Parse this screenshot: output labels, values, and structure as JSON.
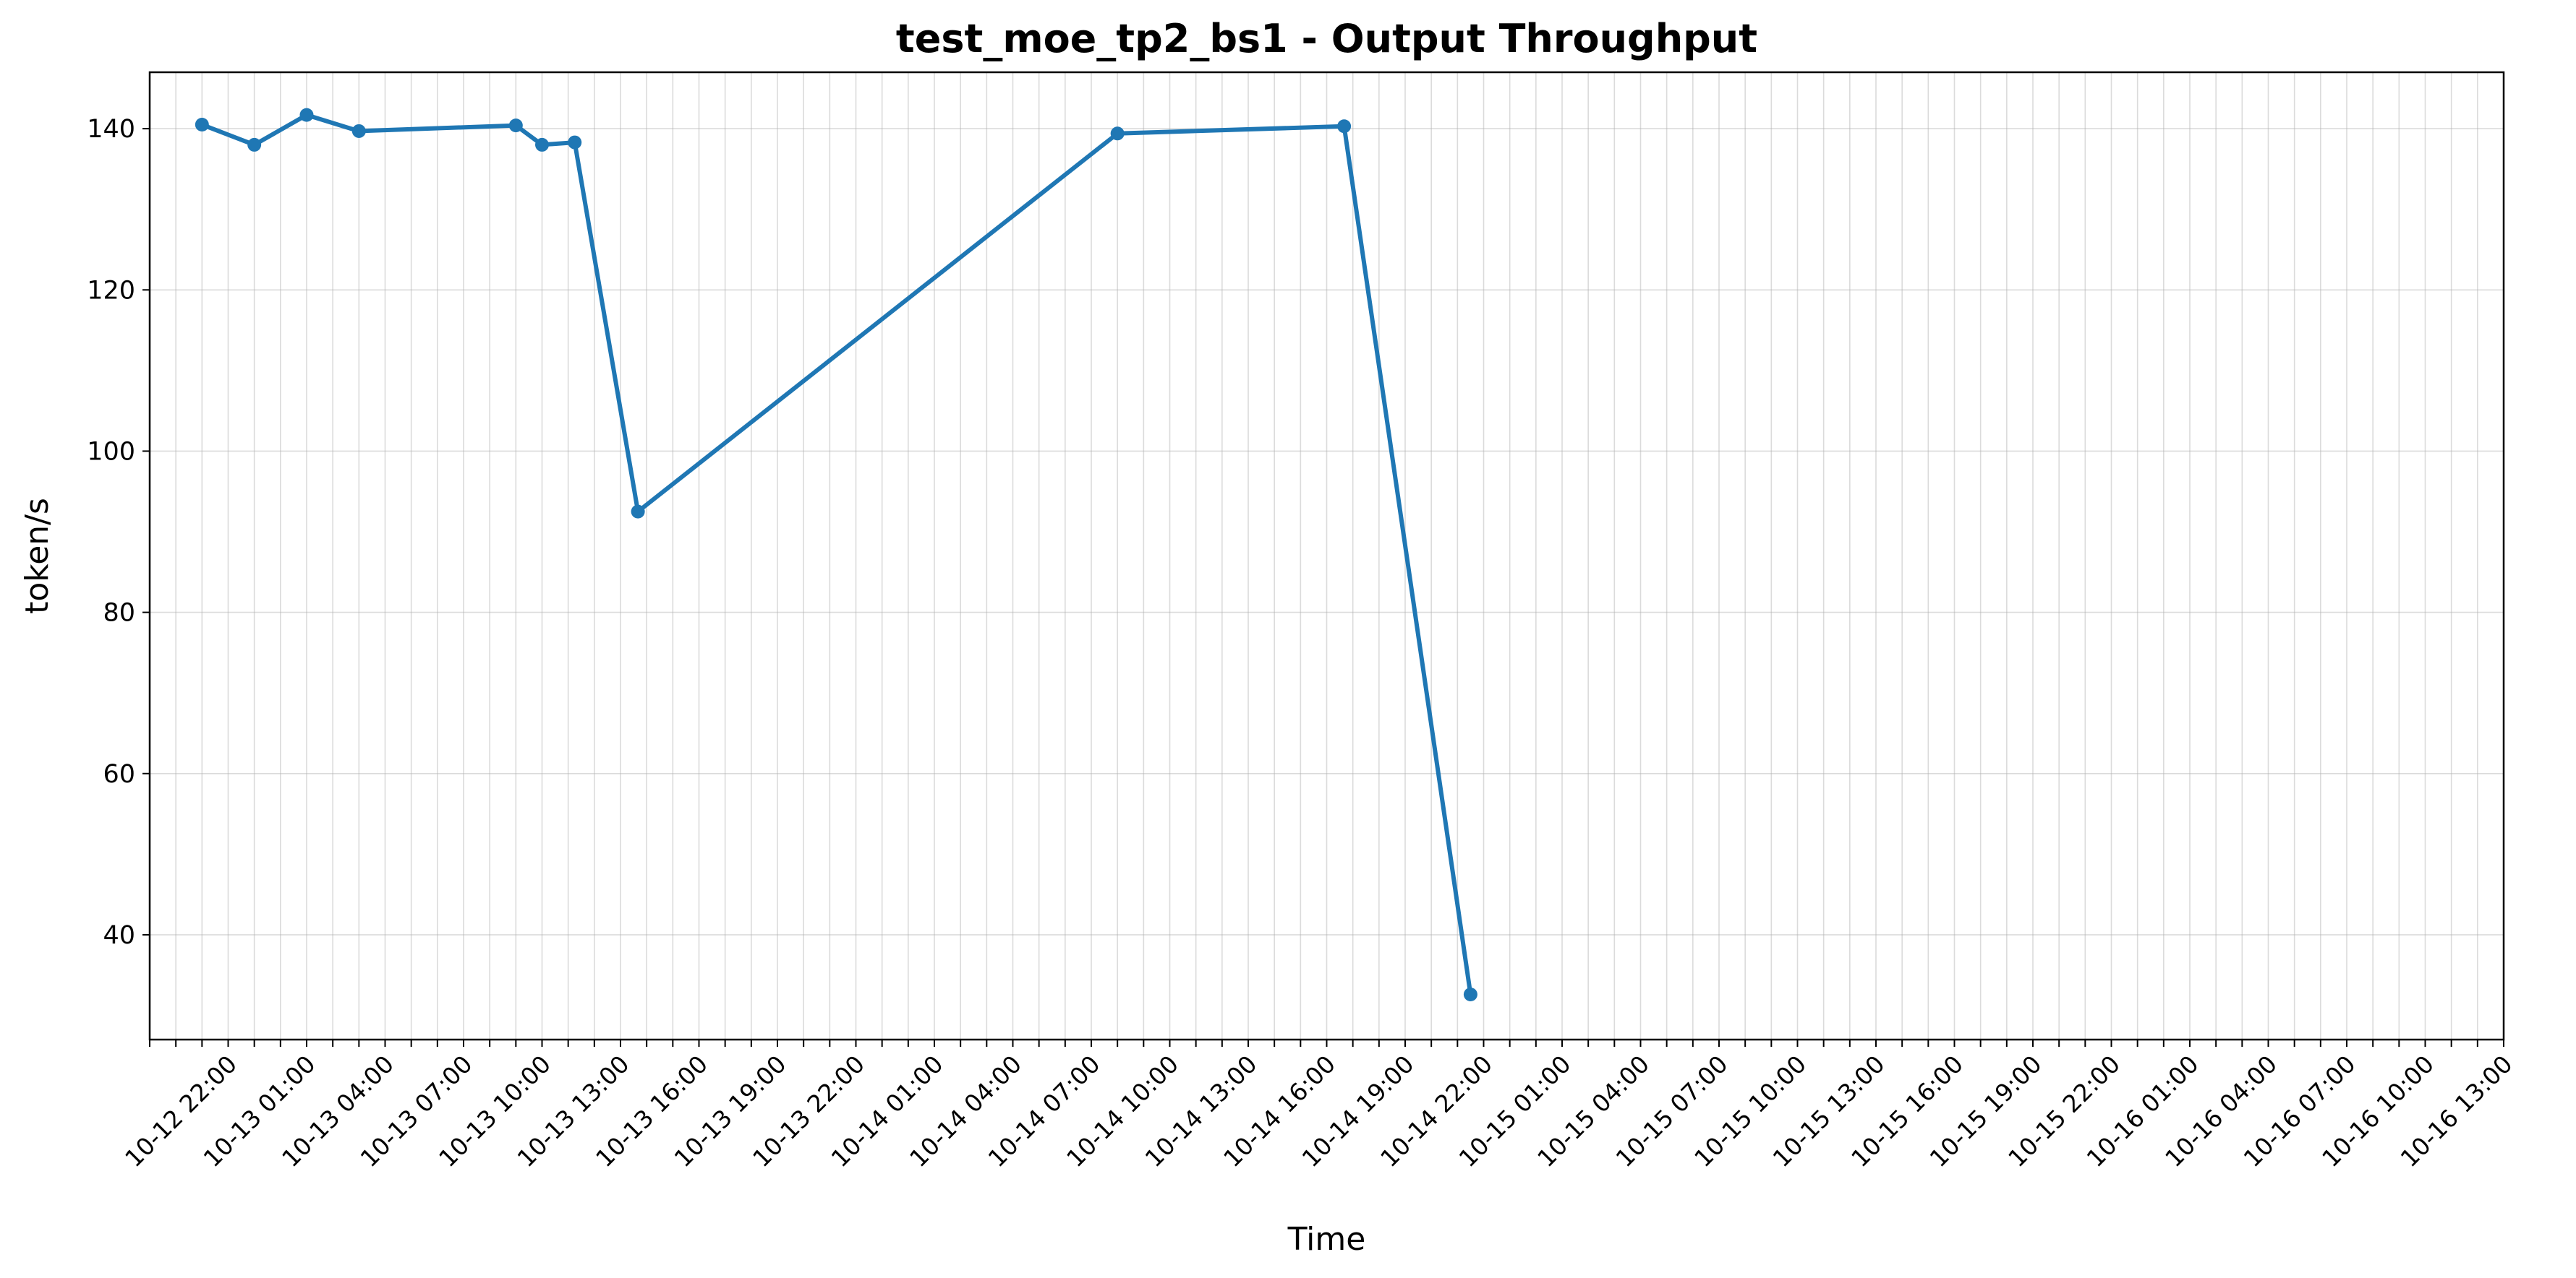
{
  "chart_data": {
    "type": "line",
    "title": "test_moe_tp2_bs1 - Output Throughput",
    "xlabel": "Time",
    "ylabel": "token/s",
    "x_axis_type": "datetime",
    "x_tick_format": "MM-DD HH:mm",
    "x_tick_interval_hours": 1,
    "x_tick_label_every_hours": 3,
    "xlim": [
      "10-12 19:00",
      "10-16 13:00"
    ],
    "ylim": [
      27,
      147
    ],
    "yticks": [
      40,
      60,
      80,
      100,
      120,
      140
    ],
    "grid": true,
    "line_color": "#1f77b4",
    "marker": "circle",
    "series": [
      {
        "x": [
          "10-12 21:00",
          "10-12 23:00",
          "10-13 01:00",
          "10-13 03:00",
          "10-13 09:00",
          "10-13 10:00",
          "10-13 11:15",
          "10-13 13:40",
          "10-14 08:00",
          "10-14 16:40",
          "10-14 21:30"
        ],
        "values": [
          140.5,
          138.0,
          141.7,
          139.7,
          140.4,
          138.0,
          138.3,
          92.5,
          139.4,
          140.3,
          32.6
        ]
      }
    ]
  }
}
